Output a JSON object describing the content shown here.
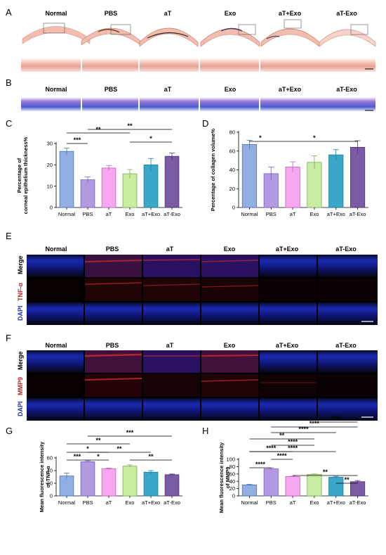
{
  "panel_labels": [
    "A",
    "B",
    "C",
    "D",
    "E",
    "F",
    "G",
    "H"
  ],
  "groups": [
    "Normal",
    "PBS",
    "aT",
    "Exo",
    "aT+Exo",
    "aT-Exo"
  ],
  "row_labels_E": [
    "Merge",
    "TNF-α",
    "DAPI"
  ],
  "row_labels_F": [
    "Merge",
    "MMP9",
    "DAPI"
  ],
  "colors": {
    "bars": [
      "#8fb0e0",
      "#b39ae0",
      "#f7a6f0",
      "#c8eca0",
      "#3ba6c8",
      "#7b5aa6"
    ],
    "bar_strokes": [
      "#4a72b8",
      "#7b5fc0",
      "#c060c0",
      "#78b050",
      "#1a7d98",
      "#4e3478"
    ],
    "dapi": "#1428a0",
    "tnf": "#c0282c",
    "mmp9": "#c81e28",
    "he": "#e89c8c",
    "masson": "#5a5ad0"
  },
  "chart_data": [
    {
      "panel": "C",
      "type": "bar",
      "ylabel": "Percentage of\ncorneal epithelium thickness%",
      "categories": [
        "Normal",
        "PBS",
        "aT",
        "Exo",
        "aT+Exo",
        "aT-Exo"
      ],
      "values": [
        26.3,
        13.0,
        18.5,
        15.8,
        20.0,
        24.0
      ],
      "errors": [
        1.5,
        1.3,
        1.2,
        2.0,
        3.0,
        1.5
      ],
      "ylim": [
        0,
        30
      ],
      "yticks": [
        0,
        10,
        20,
        30
      ],
      "significance": [
        {
          "from": 0,
          "to": 1,
          "label": "***"
        },
        {
          "from": 0,
          "to": 3,
          "label": "**"
        },
        {
          "from": 1,
          "to": 5,
          "label": "**"
        },
        {
          "from": 3,
          "to": 5,
          "label": "*"
        }
      ]
    },
    {
      "panel": "D",
      "type": "bar",
      "ylabel": "Percentage of collagen volume%",
      "categories": [
        "Normal",
        "PBS",
        "aT",
        "Exo",
        "aT+Exo",
        "aT-Exo"
      ],
      "values": [
        67,
        36,
        43,
        48,
        56,
        64
      ],
      "errors": [
        4.5,
        7.0,
        5.5,
        7.0,
        5.5,
        7.0
      ],
      "ylim": [
        0,
        80
      ],
      "yticks": [
        0,
        20,
        40,
        60,
        80
      ],
      "significance": [
        {
          "from": 0,
          "to": 1,
          "label": "*"
        },
        {
          "from": 1,
          "to": 5,
          "label": "*"
        }
      ]
    },
    {
      "panel": "G",
      "type": "bar",
      "ylabel": "Mean fluorescence intensity\nof TNF-α",
      "categories": [
        "Normal",
        "PBS",
        "aT",
        "Exo",
        "aT+Exo",
        "aT-Exo"
      ],
      "values": [
        31.5,
        54.0,
        43.0,
        47.0,
        37.5,
        33.5
      ],
      "errors": [
        4.5,
        1.5,
        1.0,
        2.0,
        2.5,
        1.0
      ],
      "ylim": [
        0,
        60
      ],
      "yticks": [
        0,
        20,
        40,
        60
      ],
      "significance": [
        {
          "from": 0,
          "to": 1,
          "label": "***"
        },
        {
          "from": 1,
          "to": 2,
          "label": "*"
        },
        {
          "from": 0,
          "to": 2,
          "label": "*"
        },
        {
          "from": 1,
          "to": 4,
          "label": "**"
        },
        {
          "from": 0,
          "to": 3,
          "label": "**"
        },
        {
          "from": 1,
          "to": 5,
          "label": "***"
        },
        {
          "from": 3,
          "to": 5,
          "label": "**"
        }
      ]
    },
    {
      "panel": "H",
      "type": "bar",
      "ylabel": "Mean fluorescence intensity\nof MMP9",
      "categories": [
        "Normal",
        "PBS",
        "aT",
        "Exo",
        "aT+Exo",
        "aT-Exo"
      ],
      "values": [
        30,
        74,
        53,
        59,
        51,
        39
      ],
      "errors": [
        1.5,
        3.0,
        1.0,
        0.8,
        2.5,
        3.0
      ],
      "ylim": [
        0,
        100
      ],
      "yticks": [
        0,
        20,
        40,
        60,
        80,
        100
      ],
      "significance": [
        {
          "from": 0,
          "to": 1,
          "label": "****"
        },
        {
          "from": 1,
          "to": 2,
          "label": "****"
        },
        {
          "from": 0,
          "to": 2,
          "label": "****"
        },
        {
          "from": 1,
          "to": 3,
          "label": "****"
        },
        {
          "from": 0,
          "to": 3,
          "label": "**"
        },
        {
          "from": 1,
          "to": 4,
          "label": "****"
        },
        {
          "from": 0,
          "to": 4,
          "label": "****"
        },
        {
          "from": 1,
          "to": 5,
          "label": "****"
        },
        {
          "from": 2,
          "to": 5,
          "label": "**"
        },
        {
          "from": 3,
          "to": 5,
          "label": "****"
        },
        {
          "from": 4,
          "to": 5,
          "label": "**"
        }
      ]
    }
  ]
}
